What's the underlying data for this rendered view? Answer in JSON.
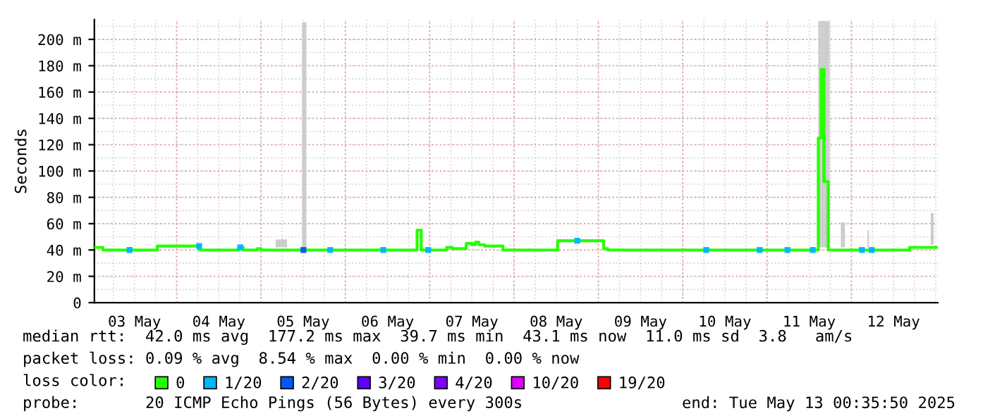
{
  "chart_data": {
    "type": "step",
    "ylabel": "Seconds",
    "xlim": [
      "2025-05-03T00:35",
      "2025-05-13T00:35"
    ],
    "xticks": [
      {
        "value": "2025-05-03T12:00",
        "label": "03 May"
      },
      {
        "value": "2025-05-04T00:00",
        "label": null
      },
      {
        "value": "2025-05-04T12:00",
        "label": "04 May"
      },
      {
        "value": "2025-05-05T00:00",
        "label": null
      },
      {
        "value": "2025-05-05T12:00",
        "label": "05 May"
      },
      {
        "value": "2025-05-06T00:00",
        "label": null
      },
      {
        "value": "2025-05-06T12:00",
        "label": "06 May"
      },
      {
        "value": "2025-05-07T00:00",
        "label": null
      },
      {
        "value": "2025-05-07T12:00",
        "label": "07 May"
      },
      {
        "value": "2025-05-08T00:00",
        "label": null
      },
      {
        "value": "2025-05-08T12:00",
        "label": "08 May"
      },
      {
        "value": "2025-05-09T00:00",
        "label": null
      },
      {
        "value": "2025-05-09T12:00",
        "label": "09 May"
      },
      {
        "value": "2025-05-10T00:00",
        "label": null
      },
      {
        "value": "2025-05-10T12:00",
        "label": "10 May"
      },
      {
        "value": "2025-05-11T00:00",
        "label": null
      },
      {
        "value": "2025-05-11T12:00",
        "label": "11 May"
      },
      {
        "value": "2025-05-12T00:00",
        "label": null
      },
      {
        "value": "2025-05-12T12:00",
        "label": "12 May"
      }
    ],
    "ylim": [
      0,
      215
    ],
    "yticks": [
      0,
      {
        "value": 20,
        "label": "20 m"
      },
      {
        "value": 40,
        "label": "40 m"
      },
      {
        "value": 60,
        "label": "60 m"
      },
      {
        "value": 80,
        "label": "80 m"
      },
      {
        "value": 100,
        "label": "100 m"
      },
      {
        "value": 120,
        "label": "120 m"
      },
      {
        "value": 140,
        "label": "140 m"
      },
      {
        "value": 160,
        "label": "160 m"
      },
      {
        "value": 180,
        "label": "180 m"
      },
      {
        "value": 200,
        "label": "200 m"
      }
    ],
    "grid": true,
    "legend": "bottom",
    "legend_title": "loss color:",
    "series": [
      {
        "name": "0",
        "color": "#26ff00",
        "x": [
          "2025-05-03T00:35",
          "2025-05-03T03:00",
          "2025-05-03T18:30",
          "2025-05-04T06:30",
          "2025-05-04T17:40",
          "2025-05-04T18:55",
          "2025-05-04T22:55",
          "2025-05-05T00:05",
          "2025-05-05T04:10",
          "2025-05-05T07:25",
          "2025-05-05T11:40",
          "2025-05-05T12:55",
          "2025-05-06T20:25",
          "2025-05-06T21:10",
          "2025-05-06T21:35",
          "2025-05-07T04:50",
          "2025-05-07T06:25",
          "2025-05-07T10:25",
          "2025-05-07T12:00",
          "2025-05-07T13:00",
          "2025-05-07T14:00",
          "2025-05-07T15:35",
          "2025-05-07T20:50",
          "2025-05-08T12:25",
          "2025-05-09T01:30",
          "2025-05-09T02:40",
          "2025-05-11T09:25",
          "2025-05-11T14:35",
          "2025-05-11T15:25",
          "2025-05-11T16:10",
          "2025-05-11T17:25",
          "2025-05-11T17:50",
          "2025-05-11T21:00",
          "2025-05-11T22:10",
          "2025-05-12T04:35",
          "2025-05-12T05:00",
          "2025-05-12T16:35",
          "2025-05-12T22:35",
          "2025-05-12T23:25",
          "2025-05-13T00:35"
        ],
        "values": [
          42,
          40,
          43,
          40,
          42,
          40,
          41,
          40,
          40,
          40,
          40,
          40,
          55,
          55,
          40,
          42,
          41,
          45,
          44,
          46,
          44,
          43,
          40,
          47,
          41,
          40,
          40,
          125,
          177.2,
          92,
          40,
          40,
          40,
          40,
          40,
          40,
          42,
          42,
          42,
          42
        ],
        "lower": [
          null,
          null,
          null,
          null,
          null,
          null,
          null,
          null,
          42,
          null,
          42,
          null,
          null,
          null,
          null,
          null,
          null,
          null,
          null,
          null,
          null,
          null,
          null,
          null,
          null,
          null,
          null,
          42,
          42,
          42,
          42,
          null,
          42,
          null,
          42,
          null,
          null,
          44,
          null,
          null
        ],
        "upper": [
          null,
          null,
          null,
          null,
          null,
          null,
          null,
          null,
          48,
          null,
          213,
          null,
          null,
          null,
          null,
          null,
          null,
          null,
          null,
          null,
          null,
          null,
          null,
          null,
          null,
          null,
          null,
          214,
          214,
          214,
          214,
          null,
          61,
          null,
          55,
          null,
          null,
          68,
          null,
          null
        ]
      },
      {
        "name": "1/20",
        "type": "scatter",
        "color": "#00b8ff",
        "x": [
          "2025-05-03T10:36",
          "2025-05-04T06:24",
          "2025-05-04T18:06",
          "2025-05-05T19:42",
          "2025-05-06T10:48",
          "2025-05-06T23:36",
          "2025-05-08T18:00",
          "2025-05-10T06:42",
          "2025-05-10T21:54",
          "2025-05-11T05:48",
          "2025-05-11T13:00",
          "2025-05-12T03:00",
          "2025-05-12T05:48"
        ],
        "values": [
          40,
          43,
          42,
          40,
          40,
          40,
          47,
          40,
          40,
          40,
          40,
          40,
          40
        ]
      },
      {
        "name": "2/20",
        "type": "scatter",
        "color": "#0059ff",
        "x": [
          "2025-05-05T12:05"
        ],
        "values": [
          40
        ]
      },
      {
        "name": "3/20",
        "type": "scatter",
        "color": "#5e00ff"
      },
      {
        "name": "4/20",
        "type": "scatter",
        "color": "#7e00ff"
      },
      {
        "name": "10/20",
        "type": "scatter",
        "color": "#dd00ff"
      },
      {
        "name": "19/20",
        "type": "scatter",
        "color": "#ff0000"
      }
    ],
    "annotations": [
      "median rtt:  42.0 ms avg  177.2 ms max  39.7 ms min  43.1 ms now  11.0 ms sd  3.8   am/s",
      "packet loss: 0.09 % avg  8.54 % max  0.00 % min  0.00 % now",
      "probe:       20 ICMP Echo Pings (56 Bytes) every 300s",
      "end: Tue May 13 00:35:50 2025"
    ]
  }
}
